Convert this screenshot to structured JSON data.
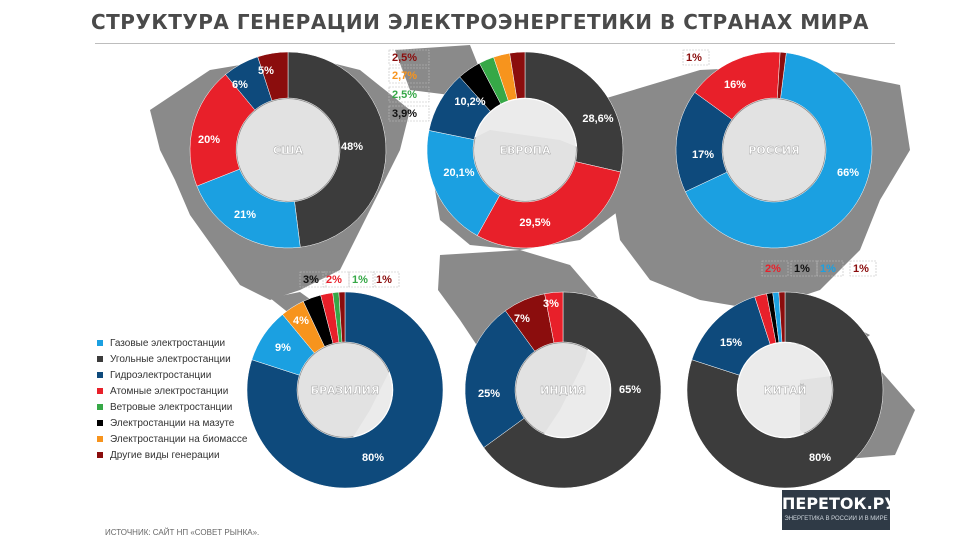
{
  "title": "СТРУКТУРА ГЕНЕРАЦИИ ЭЛЕКТРОЭНЕРГЕТИКИ В СТРАНАХ МИРА",
  "source": "ИСТОЧНИК: САЙТ НП «СОВЕТ РЫНКА».",
  "logo": {
    "name": "ПЕРЕТОК.РУ",
    "tagline": "ЭНЕРГЕТИКА В РОССИИ И В МИРЕ"
  },
  "colors": {
    "map": "#8a8a8a",
    "gas": "#1ba0e1",
    "coal": "#3c3c3c",
    "hydro": "#0e4a7c",
    "nuclear": "#e8202a",
    "wind": "#36a847",
    "oil": "#000000",
    "biomass": "#f7941d",
    "other": "#8b0d0d"
  },
  "legend": [
    {
      "key": "gas",
      "label": "Газовые электростанции"
    },
    {
      "key": "coal",
      "label": "Угольные электростанции"
    },
    {
      "key": "hydro",
      "label": "Гидроэлектростанции"
    },
    {
      "key": "nuclear",
      "label": "Атомные электростанции"
    },
    {
      "key": "wind",
      "label": "Ветровые электростанции"
    },
    {
      "key": "oil",
      "label": "Электростанции на мазуте"
    },
    {
      "key": "biomass",
      "label": "Электростанции на биомассе"
    },
    {
      "key": "other",
      "label": "Другие виды генерации"
    }
  ],
  "chart_data": [
    {
      "type": "pie",
      "title": "США",
      "slices": [
        {
          "key": "coal",
          "value": 48,
          "label": "48%"
        },
        {
          "key": "gas",
          "value": 21,
          "label": "21%"
        },
        {
          "key": "nuclear",
          "value": 20,
          "label": "20%"
        },
        {
          "key": "hydro",
          "value": 6,
          "label": "6%"
        },
        {
          "key": "other",
          "value": 5,
          "label": "5%"
        }
      ]
    },
    {
      "type": "pie",
      "title": "ЕВРОПА",
      "slices": [
        {
          "key": "coal",
          "value": 28.6,
          "label": "28,6%"
        },
        {
          "key": "nuclear",
          "value": 29.5,
          "label": "29,5%"
        },
        {
          "key": "gas",
          "value": 20.1,
          "label": "20,1%"
        },
        {
          "key": "hydro",
          "value": 10.2,
          "label": "10,2%"
        },
        {
          "key": "oil",
          "value": 3.9,
          "label": "3,9%"
        },
        {
          "key": "wind",
          "value": 2.5,
          "label": "2,5%"
        },
        {
          "key": "biomass",
          "value": 2.7,
          "label": "2,7%"
        },
        {
          "key": "other",
          "value": 2.5,
          "label": "2,5%"
        }
      ]
    },
    {
      "type": "pie",
      "title": "РОССИЯ",
      "slices": [
        {
          "key": "gas",
          "value": 66,
          "label": "66%"
        },
        {
          "key": "oil",
          "value": 0,
          "label": ""
        },
        {
          "key": "hydro",
          "value": 17,
          "label": "17%"
        },
        {
          "key": "nuclear",
          "value": 16,
          "label": "16%"
        },
        {
          "key": "other",
          "value": 1,
          "label": "1%"
        }
      ]
    },
    {
      "type": "pie",
      "title": "БРАЗИЛИЯ",
      "slices": [
        {
          "key": "hydro",
          "value": 80,
          "label": "80%"
        },
        {
          "key": "gas",
          "value": 9,
          "label": "9%"
        },
        {
          "key": "biomass",
          "value": 4,
          "label": "4%"
        },
        {
          "key": "oil",
          "value": 3,
          "label": "3%"
        },
        {
          "key": "nuclear",
          "value": 2,
          "label": "2%"
        },
        {
          "key": "wind",
          "value": 1,
          "label": "1%"
        },
        {
          "key": "other",
          "value": 1,
          "label": "1%"
        }
      ]
    },
    {
      "type": "pie",
      "title": "ИНДИЯ",
      "slices": [
        {
          "key": "gas",
          "value": 0,
          "label": ""
        },
        {
          "key": "coal",
          "value": 65,
          "label": "65%"
        },
        {
          "key": "hydro",
          "value": 25,
          "label": "25%"
        },
        {
          "key": "other",
          "value": 7,
          "label": "7%"
        },
        {
          "key": "nuclear",
          "value": 3,
          "label": "3%"
        }
      ]
    },
    {
      "type": "pie",
      "title": "КИТАЙ",
      "slices": [
        {
          "key": "coal",
          "value": 80,
          "label": "80%"
        },
        {
          "key": "hydro",
          "value": 15,
          "label": "15%"
        },
        {
          "key": "nuclear",
          "value": 2,
          "label": "2%"
        },
        {
          "key": "oil",
          "value": 1,
          "label": "1%"
        },
        {
          "key": "gas",
          "value": 1,
          "label": "1%"
        },
        {
          "key": "other",
          "value": 1,
          "label": "1%"
        }
      ]
    }
  ]
}
